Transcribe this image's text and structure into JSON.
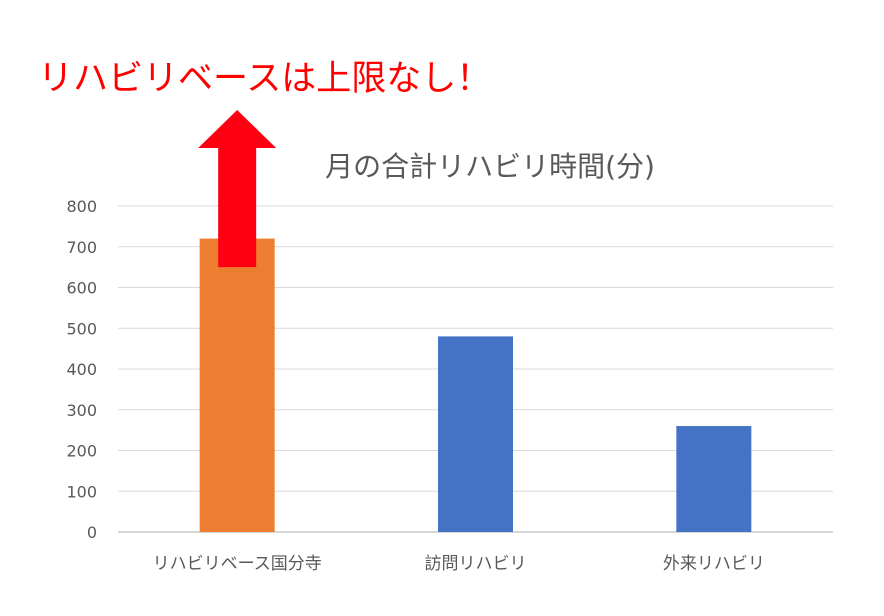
{
  "headline": "リハビリベースは上限なし！",
  "colors": {
    "highlight_bar": "#ED7D31",
    "bar": "#4472C4",
    "arrow": "#FF0012",
    "headline": "#FF0000",
    "grid": "#D9D9D9",
    "text": "#595959"
  },
  "chart_data": {
    "type": "bar",
    "title": "月の合計リハビリ時間(分)",
    "xlabel": "",
    "ylabel": "",
    "categories": [
      "リハビリベース国分寺",
      "訪問リハビリ",
      "外来リハビリ"
    ],
    "values": [
      720,
      480,
      260
    ],
    "ylim": [
      0,
      800
    ],
    "yticks": [
      0,
      100,
      200,
      300,
      400,
      500,
      600,
      700,
      800
    ],
    "grid": true,
    "legend": "none",
    "highlight_index": 0,
    "annotation": {
      "type": "upward-arrow",
      "on_category": "リハビリベース国分寺",
      "from_value": 650
    }
  }
}
